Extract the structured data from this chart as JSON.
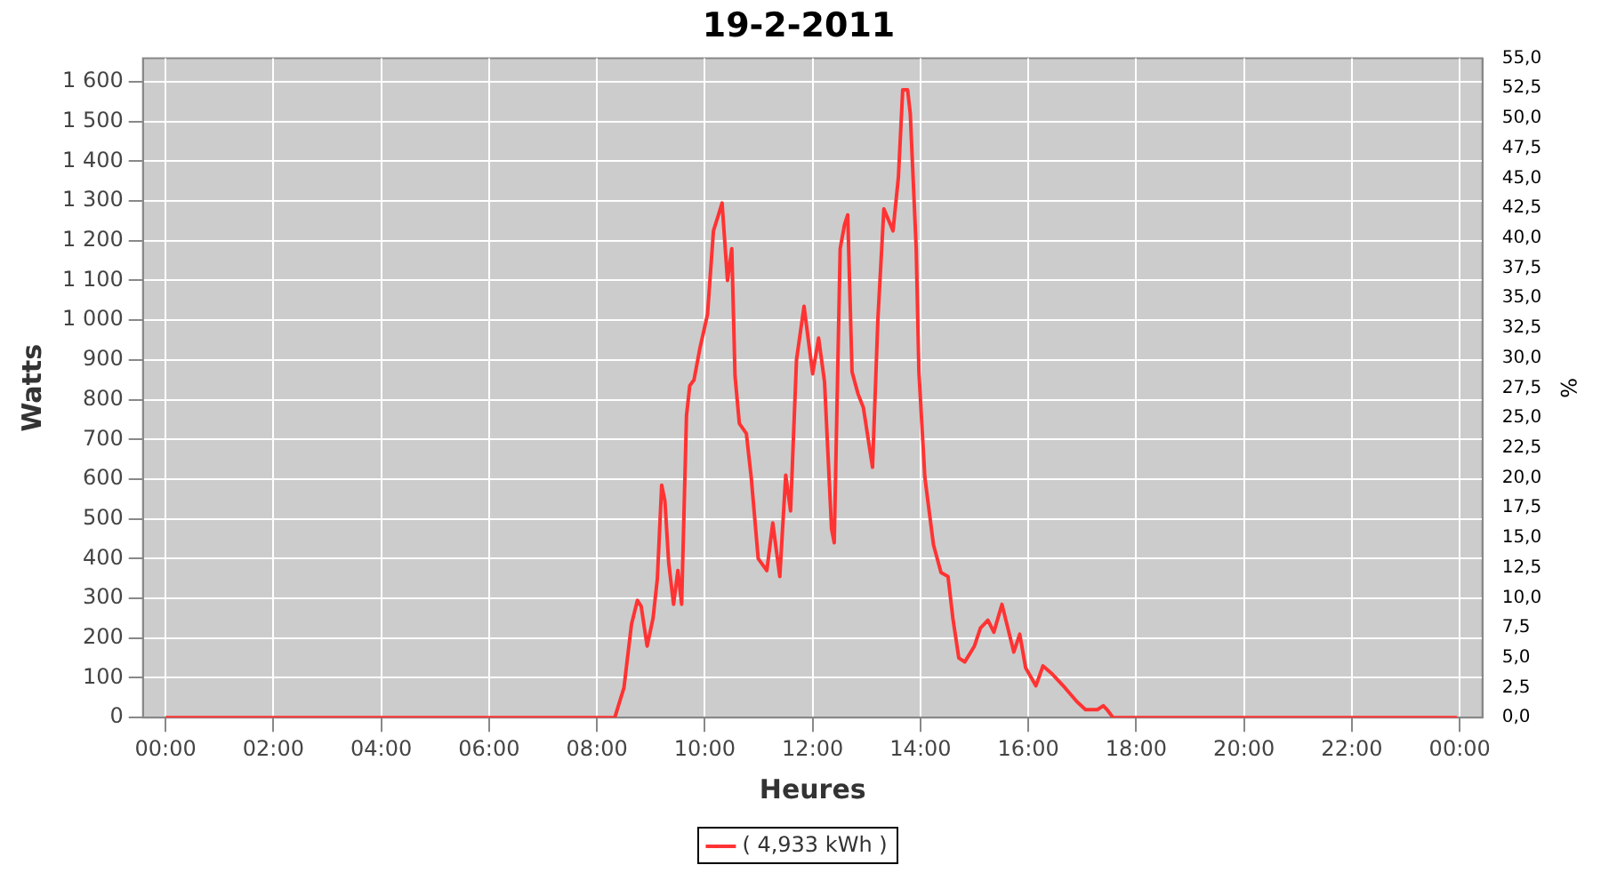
{
  "chart_data": {
    "type": "line",
    "title": "19-2-2011",
    "xlabel": "Heures",
    "ylabel": "Watts",
    "y2label": "%",
    "xlim": [
      -0.42,
      24.42
    ],
    "xticks": [
      {
        "value": 0,
        "label": "00:00"
      },
      {
        "value": 2,
        "label": "02:00"
      },
      {
        "value": 4,
        "label": "04:00"
      },
      {
        "value": 6,
        "label": "06:00"
      },
      {
        "value": 8,
        "label": "08:00"
      },
      {
        "value": 10,
        "label": "10:00"
      },
      {
        "value": 12,
        "label": "12:00"
      },
      {
        "value": 14,
        "label": "14:00"
      },
      {
        "value": 16,
        "label": "16:00"
      },
      {
        "value": 18,
        "label": "18:00"
      },
      {
        "value": 20,
        "label": "20:00"
      },
      {
        "value": 22,
        "label": "22:00"
      },
      {
        "value": 24,
        "label": "00:00"
      }
    ],
    "ylim": [
      0,
      1659
    ],
    "yticks": [
      0,
      100,
      200,
      300,
      400,
      500,
      600,
      700,
      800,
      900,
      {
        "value": 1000,
        "label": "1 000"
      },
      {
        "value": 1100,
        "label": "1 100"
      },
      {
        "value": 1200,
        "label": "1 200"
      },
      {
        "value": 1300,
        "label": "1 300"
      },
      {
        "value": 1400,
        "label": "1 400"
      },
      {
        "value": 1500,
        "label": "1 500"
      },
      {
        "value": 1600,
        "label": "1 600"
      }
    ],
    "y2lim": [
      0,
      55
    ],
    "y2ticks": [
      {
        "value": 0,
        "label": "0,0"
      },
      {
        "value": 2.5,
        "label": "2,5"
      },
      {
        "value": 5,
        "label": "5,0"
      },
      {
        "value": 7.5,
        "label": "7,5"
      },
      {
        "value": 10,
        "label": "10,0"
      },
      {
        "value": 12.5,
        "label": "12,5"
      },
      {
        "value": 15,
        "label": "15,0"
      },
      {
        "value": 17.5,
        "label": "17,5"
      },
      {
        "value": 20,
        "label": "20,0"
      },
      {
        "value": 22.5,
        "label": "22,5"
      },
      {
        "value": 25,
        "label": "25,0"
      },
      {
        "value": 27.5,
        "label": "27,5"
      },
      {
        "value": 30,
        "label": "30,0"
      },
      {
        "value": 32.5,
        "label": "32,5"
      },
      {
        "value": 35,
        "label": "35,0"
      },
      {
        "value": 37.5,
        "label": "37,5"
      },
      {
        "value": 40,
        "label": "40,0"
      },
      {
        "value": 42.5,
        "label": "42,5"
      },
      {
        "value": 45,
        "label": "45,0"
      },
      {
        "value": 47.5,
        "label": "47,5"
      },
      {
        "value": 50,
        "label": "50,0"
      },
      {
        "value": 52.5,
        "label": "52,5"
      },
      {
        "value": 55,
        "label": "55,0"
      }
    ],
    "grid": true,
    "legend": "bottom",
    "marker": "none",
    "line_style": "solid",
    "series": [
      {
        "name": "( 4,933 kWh )",
        "color": "#ff3333",
        "x": [
          0,
          8.33,
          8.5,
          8.64,
          8.75,
          8.82,
          8.93,
          9.04,
          9.12,
          9.2,
          9.26,
          9.33,
          9.42,
          9.5,
          9.57,
          9.66,
          9.72,
          9.8,
          9.91,
          10.05,
          10.16,
          10.23,
          10.32,
          10.42,
          10.5,
          10.56,
          10.64,
          10.77,
          10.86,
          10.99,
          11.15,
          11.26,
          11.39,
          11.5,
          11.59,
          11.7,
          11.84,
          12,
          12.11,
          12.22,
          12.35,
          12.4,
          12.51,
          12.59,
          12.65,
          12.73,
          12.84,
          12.94,
          13.11,
          13.21,
          13.32,
          13.49,
          13.59,
          13.67,
          13.76,
          13.81,
          13.92,
          13.97,
          14.08,
          14.24,
          14.38,
          14.51,
          14.6,
          14.71,
          14.82,
          15,
          15.11,
          15.25,
          15.36,
          15.51,
          15.62,
          15.73,
          15.84,
          15.95,
          16.14,
          16.27,
          16.44,
          16.68,
          16.9,
          17.06,
          17.28,
          17.39,
          17.46,
          17.57,
          23.95
        ],
        "values": [
          0,
          0,
          75,
          235,
          295,
          280,
          180,
          250,
          350,
          585,
          545,
          390,
          285,
          370,
          285,
          760,
          835,
          850,
          930,
          1015,
          1225,
          1255,
          1295,
          1100,
          1180,
          860,
          740,
          715,
          605,
          400,
          370,
          490,
          355,
          610,
          520,
          900,
          1035,
          865,
          955,
          845,
          475,
          440,
          1180,
          1240,
          1265,
          870,
          815,
          780,
          630,
          1005,
          1280,
          1225,
          1360,
          1580,
          1580,
          1520,
          1180,
          870,
          605,
          435,
          365,
          355,
          250,
          150,
          140,
          180,
          225,
          245,
          215,
          285,
          225,
          165,
          210,
          125,
          80,
          130,
          110,
          75,
          40,
          20,
          20,
          30,
          20,
          0,
          0
        ]
      }
    ]
  }
}
